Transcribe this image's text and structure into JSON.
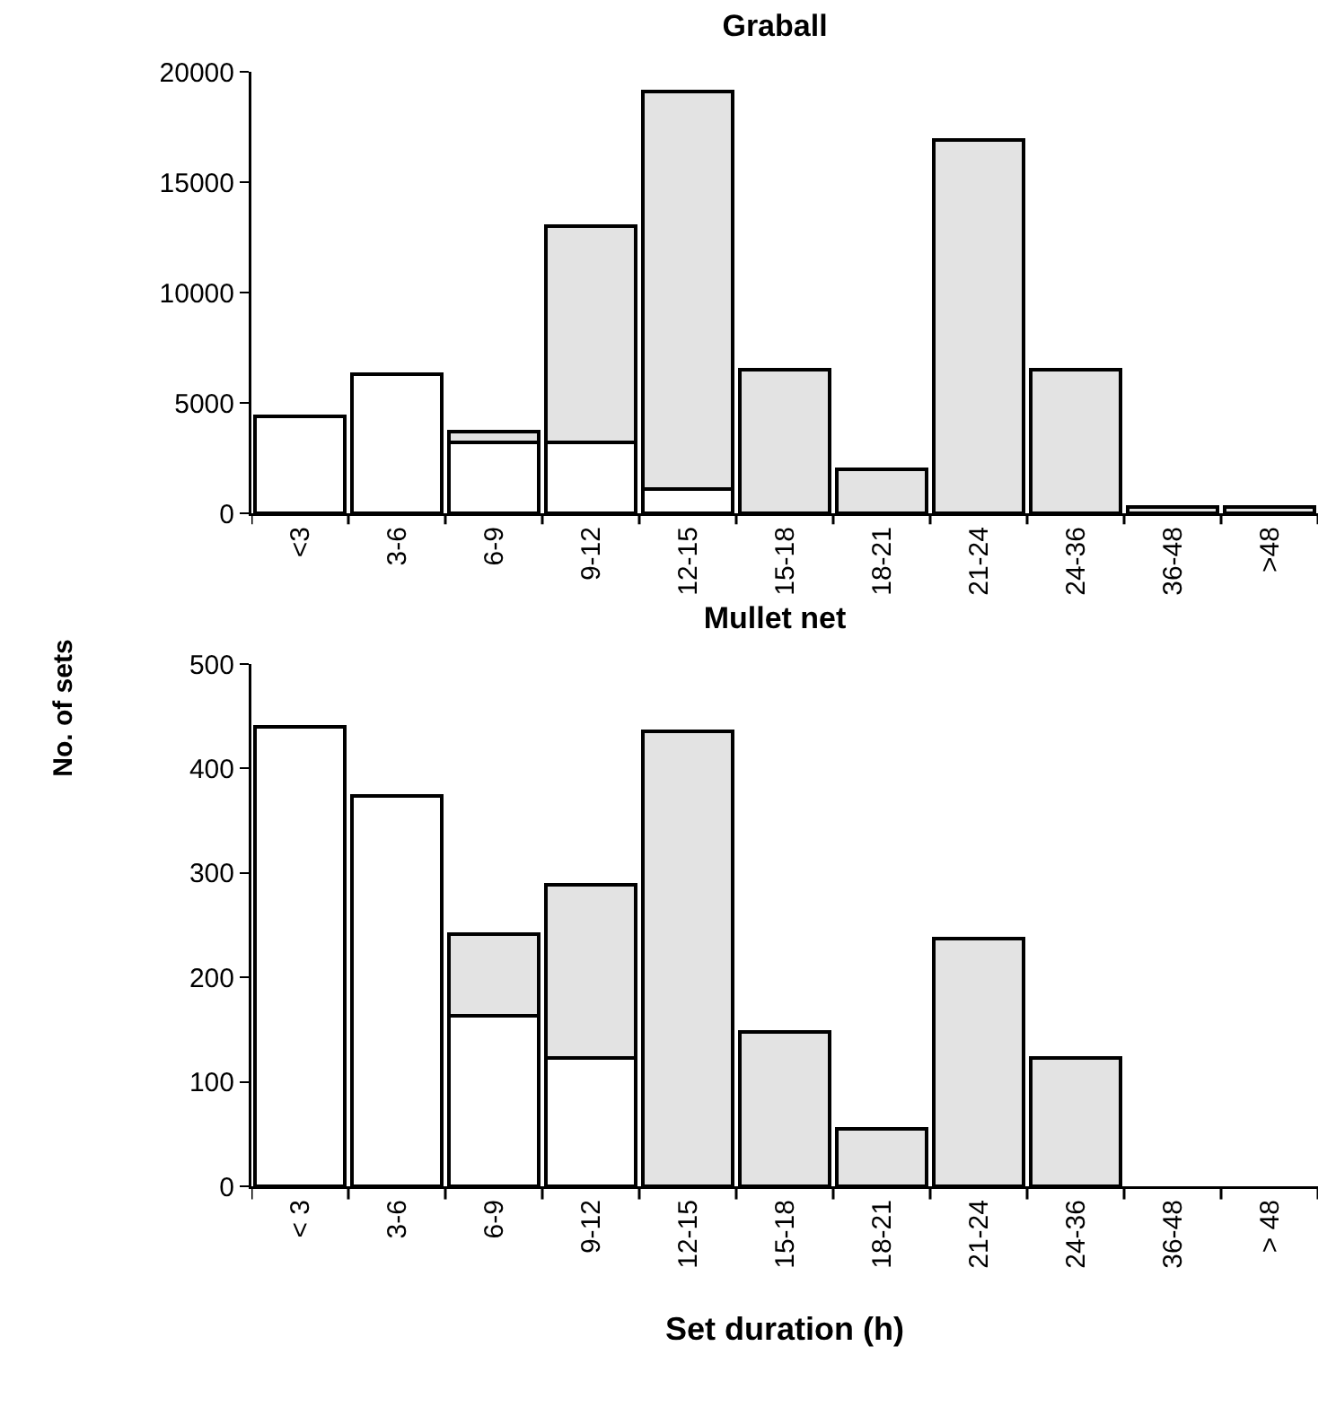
{
  "chart_data": [
    {
      "type": "bar",
      "title": "Graball",
      "ylabel": "No. of sets",
      "categories": [
        "<3",
        "3-6",
        "6-9",
        "9-12",
        "12-15",
        "15-18",
        "18-21",
        "21-24",
        "24-36",
        "36-48",
        ">48"
      ],
      "stacked": true,
      "grid": false,
      "ylim": [
        0,
        20000
      ],
      "yticks": [
        0,
        5000,
        10000,
        15000,
        20000
      ],
      "series": [
        {
          "color": "#ffffff",
          "values": [
            4400,
            6300,
            3200,
            3200,
            1100,
            null,
            null,
            null,
            null,
            null,
            null
          ]
        },
        {
          "color": "#e3e3e3",
          "values": [
            null,
            null,
            500,
            9800,
            18000,
            6500,
            2000,
            16900,
            6500,
            300,
            300
          ]
        }
      ]
    },
    {
      "type": "bar",
      "title": "Mullet net",
      "xlabel": "Set duration (h)",
      "categories": [
        "< 3",
        "3-6",
        "6-9",
        "9-12",
        "12-15",
        "15-18",
        "18-21",
        "21-24",
        "24-36",
        "36-48",
        "> 48"
      ],
      "stacked": true,
      "grid": false,
      "ylim": [
        0,
        500
      ],
      "yticks": [
        0,
        100,
        200,
        300,
        400,
        500
      ],
      "series": [
        {
          "color": "#ffffff",
          "values": [
            440,
            374,
            163,
            123,
            null,
            null,
            null,
            null,
            null,
            null,
            null
          ]
        },
        {
          "color": "#e3e3e3",
          "values": [
            null,
            null,
            78,
            166,
            436,
            148,
            55,
            237,
            123,
            null,
            null
          ]
        }
      ]
    }
  ]
}
